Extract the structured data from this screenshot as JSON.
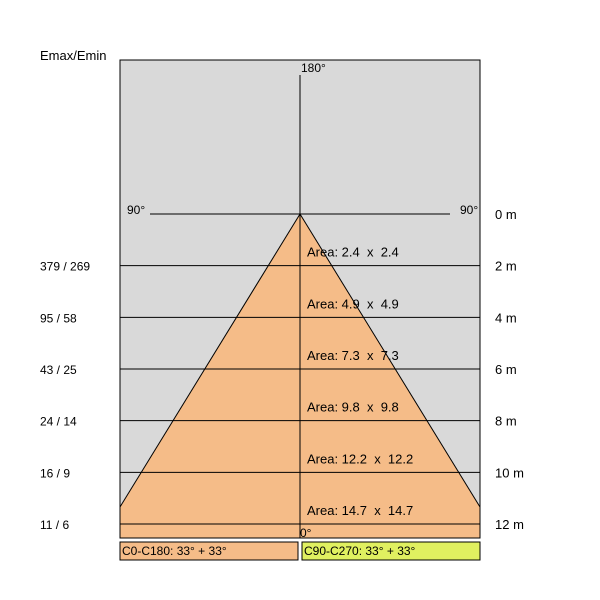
{
  "header": {
    "title": "Emax/Emin"
  },
  "angles": {
    "top": "180°",
    "left": "90°",
    "right": "90°",
    "bottom": "0°"
  },
  "rows": [
    {
      "distance": "0 m"
    },
    {
      "distance": "2 m",
      "emax_emin": "379 / 269",
      "area": "Area: 2.4  x  2.4"
    },
    {
      "distance": "4 m",
      "emax_emin": "95 / 58",
      "area": "Area: 4.9  x  4.9"
    },
    {
      "distance": "6 m",
      "emax_emin": "43 / 25",
      "area": "Area: 7.3  x  7.3"
    },
    {
      "distance": "8 m",
      "emax_emin": "24 / 14",
      "area": "Area: 9.8  x  9.8"
    },
    {
      "distance": "10 m",
      "emax_emin": "16 / 9",
      "area": "Area: 12.2  x  12.2"
    },
    {
      "distance": "12 m",
      "emax_emin": "11 / 6",
      "area": "Area: 14.7  x  14.7"
    }
  ],
  "legend": [
    "C0-C180: 33° + 33°",
    "C90-C270: 33° + 33°"
  ]
}
